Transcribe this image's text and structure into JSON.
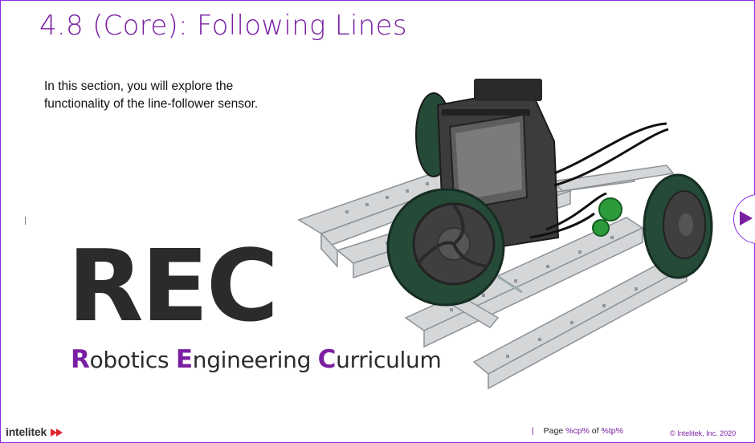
{
  "slide": {
    "title": "4.8 (Core): Following Lines",
    "intro_line1": "In this section, you will explore the",
    "intro_line2": "functionality of the line-follower sensor."
  },
  "brand": {
    "rec": "REC",
    "curriculum": {
      "r_cap": "R",
      "r_rest": "obotics ",
      "e_cap": "E",
      "e_rest": "ngineering ",
      "c_cap": "C",
      "c_rest": "urriculum"
    },
    "company_logo": "intelitek"
  },
  "footer": {
    "separator": "|",
    "page_label": "Page",
    "current_page": "%cp%",
    "of_label": "of",
    "total_pages": "%tp%",
    "copyright": "© Intelitek, Inc. 2020"
  },
  "nav": {
    "next_icon": "play-triangle-icon"
  },
  "colors": {
    "accent": "#7a1fa2",
    "frame": "#8a2be2",
    "text": "#2b2b2b"
  }
}
